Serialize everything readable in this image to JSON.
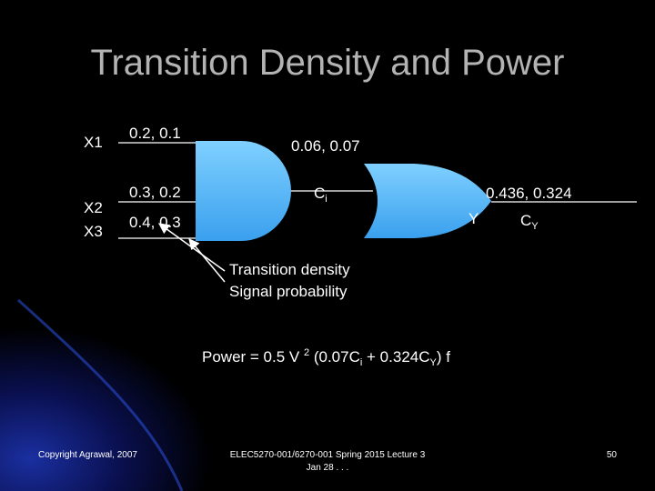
{
  "title": "Transition Density and Power",
  "inputs": [
    {
      "name": "X1",
      "values": "0.2, 0.1"
    },
    {
      "name": "X2",
      "values": "0.3, 0.2"
    },
    {
      "name": "X3",
      "values": "0.4, 0.3"
    }
  ],
  "internal": {
    "values": "0.06, 0.07",
    "cap": "C",
    "cap_sub": "i"
  },
  "output": {
    "name": "Y",
    "values": "0.436, 0.324",
    "cap": "C",
    "cap_sub": "Y"
  },
  "legend": [
    "Transition density",
    "Signal probability"
  ],
  "formula": {
    "parts": [
      "Power = 0.5 V ",
      "2",
      " (0.07C",
      "i",
      " + 0.324C",
      "Y",
      ") f"
    ]
  },
  "footer": {
    "copyright": "Copyright Agrawal, 2007",
    "course": "ELEC5270-001/6270-001 Spring 2015 Lecture 3",
    "date": "Jan 28 . . .",
    "page": "50"
  }
}
